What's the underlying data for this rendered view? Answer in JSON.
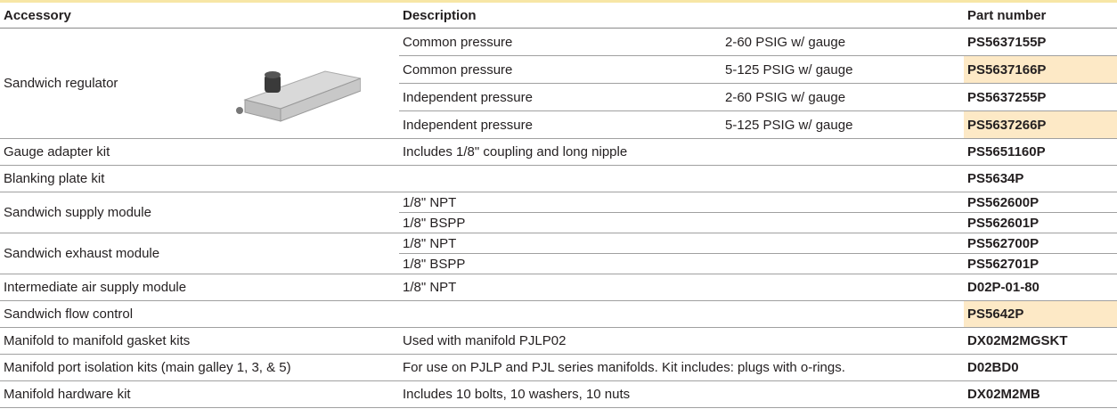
{
  "header": {
    "accessory": "Accessory",
    "description": "Description",
    "part_number": "Part number"
  },
  "groups": [
    {
      "accessory": "Sandwich regulator",
      "items": [
        {
          "description": "Common pressure",
          "detail": "2-60 PSIG w/ gauge",
          "part_number": "PS5637155P"
        },
        {
          "description": "Common pressure",
          "detail": "5-125 PSIG w/ gauge",
          "part_number": "PS5637166P",
          "highlighted": true
        },
        {
          "description": "Independent pressure",
          "detail": "2-60 PSIG w/ gauge",
          "part_number": "PS5637255P"
        },
        {
          "description": "Independent pressure",
          "detail": "5-125 PSIG w/ gauge",
          "part_number": "PS5637266P",
          "highlighted": true
        }
      ]
    },
    {
      "accessory": "Gauge adapter kit",
      "items": [
        {
          "description": "Includes 1/8\" coupling and long nipple",
          "part_number": "PS5651160P"
        }
      ]
    },
    {
      "accessory": "Blanking plate kit",
      "items": [
        {
          "part_number": "PS5634P"
        }
      ]
    },
    {
      "accessory": "Sandwich supply module",
      "items": [
        {
          "description": "1/8\" NPT",
          "part_number": "PS562600P"
        },
        {
          "description": "1/8\" BSPP",
          "part_number": "PS562601P"
        }
      ]
    },
    {
      "accessory": "Sandwich exhaust module",
      "items": [
        {
          "description": "1/8\" NPT",
          "part_number": "PS562700P"
        },
        {
          "description": "1/8\" BSPP",
          "part_number": "PS562701P"
        }
      ]
    },
    {
      "accessory": "Intermediate air supply module",
      "items": [
        {
          "description": "1/8\" NPT",
          "part_number": "D02P-01-80"
        }
      ]
    },
    {
      "accessory": "Sandwich flow control",
      "items": [
        {
          "part_number": "PS5642P",
          "highlighted": true
        }
      ]
    },
    {
      "accessory": "Manifold to manifold gasket kits",
      "items": [
        {
          "description": "Used with manifold PJLP02",
          "part_number": "DX02M2MGSKT"
        }
      ]
    },
    {
      "accessory": "Manifold port isolation kits (main galley 1, 3, & 5)",
      "items": [
        {
          "description": "For use on PJLP and PJL series manifolds. Kit includes: plugs with o-rings.",
          "part_number": "D02BD0"
        }
      ]
    },
    {
      "accessory": "Manifold hardware kit",
      "items": [
        {
          "description": "Includes 10 bolts, 10 washers, 10 nuts",
          "part_number": "DX02M2MB"
        }
      ]
    }
  ]
}
